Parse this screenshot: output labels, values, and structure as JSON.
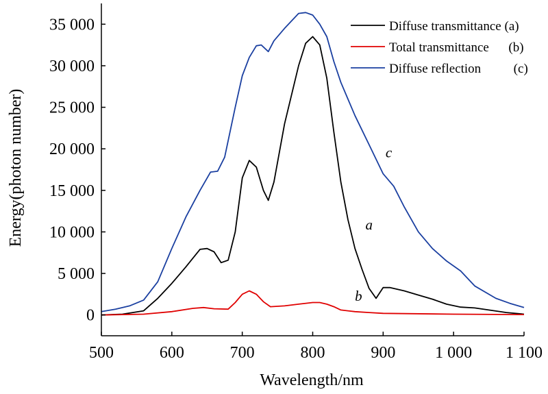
{
  "chart_data": {
    "type": "line",
    "title": "",
    "xlabel": "Wavelength/nm",
    "ylabel": "Energy(photon number)",
    "xlim": [
      500,
      1100
    ],
    "ylim": [
      -2500,
      37500
    ],
    "x_ticks": [
      500,
      600,
      700,
      800,
      900,
      1000,
      1100
    ],
    "x_tick_labels": [
      "500",
      "600",
      "700",
      "800",
      "900",
      "1 000",
      "1 100"
    ],
    "y_ticks": [
      0,
      5000,
      10000,
      15000,
      20000,
      25000,
      30000,
      35000
    ],
    "y_tick_labels": [
      "0",
      "5 000",
      "10 000",
      "15 000",
      "20 000",
      "25 000",
      "30 000",
      "35 000"
    ],
    "grid": false,
    "legend_position": "top-right",
    "series": [
      {
        "name": "Diffuse transmittance (a)",
        "label": "a",
        "color": "#000000",
        "points": [
          [
            500,
            0
          ],
          [
            530,
            100
          ],
          [
            560,
            500
          ],
          [
            580,
            2000
          ],
          [
            600,
            3800
          ],
          [
            620,
            5800
          ],
          [
            640,
            7900
          ],
          [
            650,
            8000
          ],
          [
            660,
            7600
          ],
          [
            670,
            6300
          ],
          [
            680,
            6600
          ],
          [
            690,
            10000
          ],
          [
            700,
            16500
          ],
          [
            710,
            18600
          ],
          [
            720,
            17800
          ],
          [
            730,
            15000
          ],
          [
            737,
            13800
          ],
          [
            745,
            16000
          ],
          [
            760,
            23000
          ],
          [
            780,
            30000
          ],
          [
            790,
            32700
          ],
          [
            800,
            33500
          ],
          [
            810,
            32500
          ],
          [
            820,
            28500
          ],
          [
            830,
            22000
          ],
          [
            840,
            16000
          ],
          [
            850,
            11500
          ],
          [
            860,
            8000
          ],
          [
            870,
            5500
          ],
          [
            880,
            3200
          ],
          [
            890,
            2000
          ],
          [
            900,
            3300
          ],
          [
            910,
            3300
          ],
          [
            930,
            2900
          ],
          [
            950,
            2400
          ],
          [
            970,
            1900
          ],
          [
            990,
            1300
          ],
          [
            1010,
            950
          ],
          [
            1030,
            850
          ],
          [
            1050,
            600
          ],
          [
            1075,
            300
          ],
          [
            1100,
            100
          ]
        ]
      },
      {
        "name": "Total transmittance",
        "label": "b",
        "color": "#e00000",
        "points": [
          [
            500,
            0
          ],
          [
            560,
            100
          ],
          [
            600,
            400
          ],
          [
            630,
            800
          ],
          [
            645,
            900
          ],
          [
            660,
            750
          ],
          [
            680,
            700
          ],
          [
            690,
            1500
          ],
          [
            700,
            2500
          ],
          [
            710,
            2900
          ],
          [
            720,
            2500
          ],
          [
            730,
            1600
          ],
          [
            740,
            1000
          ],
          [
            760,
            1100
          ],
          [
            780,
            1300
          ],
          [
            800,
            1500
          ],
          [
            810,
            1500
          ],
          [
            820,
            1300
          ],
          [
            830,
            1000
          ],
          [
            840,
            600
          ],
          [
            860,
            400
          ],
          [
            880,
            300
          ],
          [
            900,
            200
          ],
          [
            1000,
            100
          ],
          [
            1100,
            50
          ]
        ]
      },
      {
        "name": "Diffuse reflection",
        "label": "c",
        "color": "#1a3fa0",
        "points": [
          [
            500,
            400
          ],
          [
            520,
            700
          ],
          [
            540,
            1100
          ],
          [
            560,
            1800
          ],
          [
            580,
            4000
          ],
          [
            600,
            8000
          ],
          [
            620,
            11800
          ],
          [
            640,
            15000
          ],
          [
            655,
            17200
          ],
          [
            665,
            17300
          ],
          [
            675,
            19000
          ],
          [
            690,
            25000
          ],
          [
            700,
            28800
          ],
          [
            710,
            31000
          ],
          [
            720,
            32400
          ],
          [
            727,
            32500
          ],
          [
            737,
            31700
          ],
          [
            745,
            33000
          ],
          [
            760,
            34500
          ],
          [
            780,
            36300
          ],
          [
            790,
            36400
          ],
          [
            800,
            36100
          ],
          [
            810,
            35000
          ],
          [
            820,
            33500
          ],
          [
            830,
            30500
          ],
          [
            840,
            28000
          ],
          [
            860,
            24000
          ],
          [
            880,
            20500
          ],
          [
            900,
            17000
          ],
          [
            915,
            15500
          ],
          [
            930,
            13000
          ],
          [
            950,
            10000
          ],
          [
            970,
            8000
          ],
          [
            990,
            6500
          ],
          [
            1010,
            5300
          ],
          [
            1030,
            3500
          ],
          [
            1060,
            2000
          ],
          [
            1080,
            1400
          ],
          [
            1100,
            900
          ]
        ]
      }
    ],
    "curve_annotations": [
      {
        "text": "a",
        "x": 880,
        "y": 10300
      },
      {
        "text": "b",
        "x": 865,
        "y": 1700
      },
      {
        "text": "c",
        "x": 908,
        "y": 19000
      }
    ],
    "legend": [
      {
        "text": "Diffuse transmittance (a)",
        "color": "#000000"
      },
      {
        "text": "Total transmittance      (b)",
        "color": "#e00000"
      },
      {
        "text": "Diffuse reflection          (c)",
        "color": "#1a3fa0"
      }
    ]
  }
}
